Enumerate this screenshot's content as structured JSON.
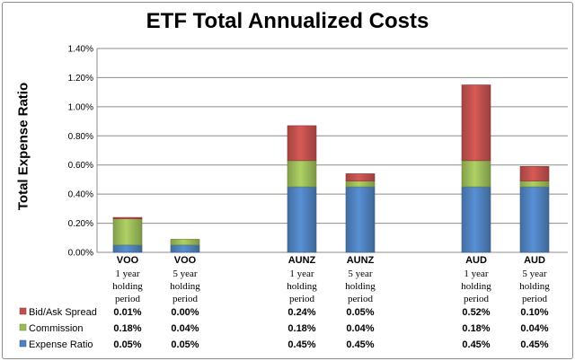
{
  "chart_data": {
    "type": "bar",
    "stacked": true,
    "title": "ETF Total Annualized Costs",
    "ylabel": "Total Expense Ratio",
    "ylim": [
      0,
      1.4
    ],
    "yticks": [
      "0.00%",
      "0.20%",
      "0.40%",
      "0.60%",
      "0.80%",
      "1.00%",
      "1.20%",
      "1.40%"
    ],
    "grid": true,
    "legend_position": "bottom-left (data table)",
    "categories": [
      {
        "ticker": "VOO",
        "lines": [
          "1 year",
          "holding",
          "period"
        ]
      },
      {
        "ticker": "VOO",
        "lines": [
          "5 year",
          "holding",
          "period"
        ]
      },
      {
        "ticker": "AUNZ",
        "lines": [
          "1 year",
          "holding",
          "period"
        ]
      },
      {
        "ticker": "AUNZ",
        "lines": [
          "5 year",
          "holding",
          "period"
        ]
      },
      {
        "ticker": "AUD",
        "lines": [
          "1 year",
          "holding",
          "period"
        ]
      },
      {
        "ticker": "AUD",
        "lines": [
          "5 year",
          "holding",
          "period"
        ]
      }
    ],
    "series": [
      {
        "name": "Expense Ratio",
        "color": "#4f81bd",
        "values": [
          0.05,
          0.05,
          0.45,
          0.45,
          0.45,
          0.45
        ],
        "labels": [
          "0.05%",
          "0.05%",
          "0.45%",
          "0.45%",
          "0.45%",
          "0.45%"
        ]
      },
      {
        "name": "Commission",
        "color": "#9bbb59",
        "values": [
          0.18,
          0.04,
          0.18,
          0.04,
          0.18,
          0.04
        ],
        "labels": [
          "0.18%",
          "0.04%",
          "0.18%",
          "0.04%",
          "0.18%",
          "0.04%"
        ]
      },
      {
        "name": "Bid/Ask Spread",
        "color": "#c0504d",
        "values": [
          0.01,
          0.0,
          0.24,
          0.05,
          0.52,
          0.1
        ],
        "labels": [
          "0.01%",
          "0.00%",
          "0.24%",
          "0.05%",
          "0.52%",
          "0.10%"
        ]
      }
    ],
    "table_row_order": [
      "Bid/Ask Spread",
      "Commission",
      "Expense Ratio"
    ]
  }
}
